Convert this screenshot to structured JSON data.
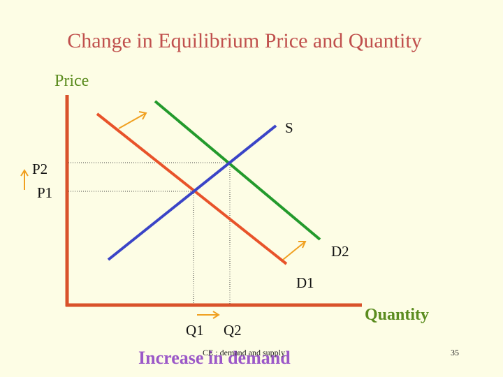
{
  "title": "Change in Equilibrium Price and Quantity",
  "axes": {
    "y_label": "Price",
    "x_label": "Quantity"
  },
  "curves": {
    "supply": "S",
    "demand_original": "D1",
    "demand_new": "D2"
  },
  "price_levels": {
    "p2": "P2",
    "p1": "P1"
  },
  "quantity_levels": {
    "q1": "Q1",
    "q2": "Q2"
  },
  "footer": {
    "caption": "Increase in demand",
    "source": "CE : demand and supply",
    "slide_number": "35"
  },
  "colors": {
    "title": "#c0504d",
    "axis_labels": "#5b8c1f",
    "axes": "#d9522b",
    "supply": "#3a44c7",
    "demand_original": "#e8532a",
    "demand_new": "#239a2c",
    "shift_arrows": "#f0a020",
    "caption": "#9b58c8",
    "background": "#fdfde5"
  }
}
